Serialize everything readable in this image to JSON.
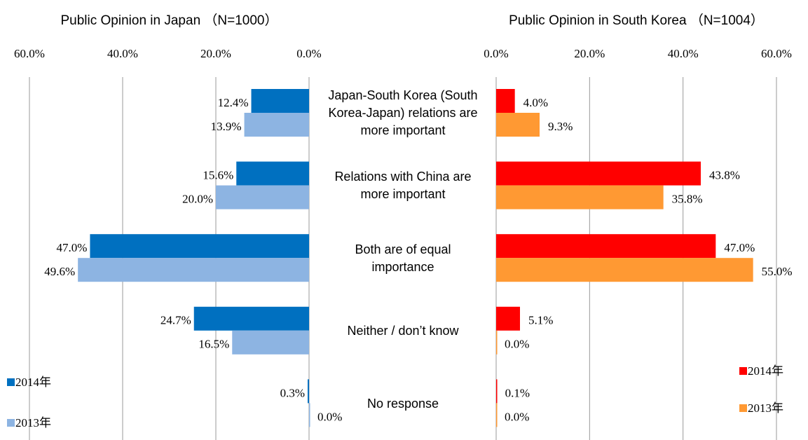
{
  "chart_data": [
    {
      "type": "barh",
      "title": "Public Opinion in Japan （N=1000）",
      "categories": [
        "Japan-South Korea (South Korea-Japan) relations are more important",
        "Relations with China are more important",
        "Both are of equal importance",
        "Neither / don’t know",
        "No response"
      ],
      "series": [
        {
          "name": "2014年",
          "color": "#0070c0",
          "values": [
            12.4,
            15.6,
            47.0,
            24.7,
            0.3
          ],
          "value_labels": [
            "12.4%",
            "15.6%",
            "47.0%",
            "24.7%",
            "0.3%"
          ]
        },
        {
          "name": "2013年",
          "color": "#8db4e2",
          "values": [
            13.9,
            20.0,
            49.6,
            16.5,
            0.0
          ],
          "value_labels": [
            "13.9%",
            "20.0%",
            "49.6%",
            "16.5%",
            "0.0%"
          ]
        }
      ],
      "xlim": [
        60,
        0
      ],
      "xticks": [
        {
          "value": 60,
          "label": "60.0%"
        },
        {
          "value": 40,
          "label": "40.0%"
        },
        {
          "value": 20,
          "label": "20.0%"
        },
        {
          "value": 0,
          "label": "0.0%"
        }
      ],
      "grid": true,
      "legend": "bottom-left"
    },
    {
      "type": "barh",
      "title": "Public Opinion in South Korea （N=1004）",
      "series": [
        {
          "name": "2014年",
          "color": "#ff0000",
          "values": [
            4.0,
            43.8,
            47.0,
            5.1,
            0.1
          ],
          "value_labels": [
            "4.0%",
            "43.8%",
            "47.0%",
            "5.1%",
            "0.1%"
          ]
        },
        {
          "name": "2013年",
          "color": "#ff9933",
          "values": [
            9.3,
            35.8,
            55.0,
            0.0,
            0.0
          ],
          "value_labels": [
            "9.3%",
            "35.8%",
            "55.0%",
            "0.0%",
            "0.0%"
          ]
        }
      ],
      "xlim": [
        0,
        60
      ],
      "xticks": [
        {
          "value": 0,
          "label": "0.0%"
        },
        {
          "value": 20,
          "label": "20.0%"
        },
        {
          "value": 40,
          "label": "40.0%"
        },
        {
          "value": 60,
          "label": "60.0%"
        }
      ],
      "grid": true,
      "legend": "bottom-right"
    }
  ]
}
